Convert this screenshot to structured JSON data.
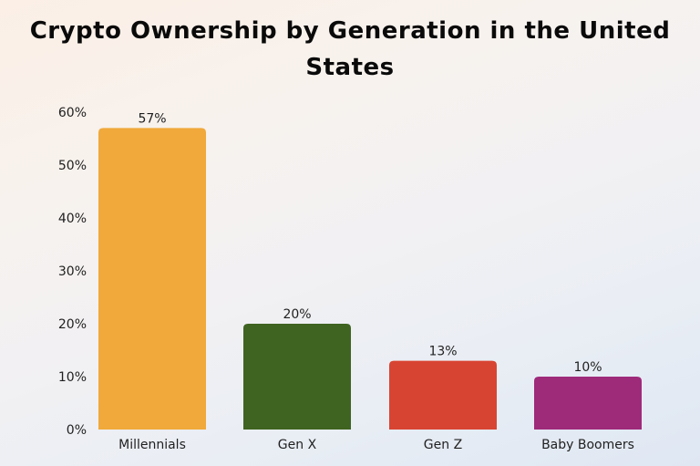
{
  "chart_data": {
    "type": "bar",
    "title": "Crypto Ownership by Generation in the United States",
    "title_lines": [
      "Crypto Ownership by Generation in the United",
      "States"
    ],
    "categories": [
      "Millennials",
      "Gen X",
      "Gen Z",
      "Baby Boomers"
    ],
    "values": [
      57,
      20,
      13,
      10
    ],
    "data_labels": [
      "57%",
      "20%",
      "13%",
      "10%"
    ],
    "colors": [
      "#f0a93a",
      "#3f6320",
      "#d84432",
      "#9e2a7a"
    ],
    "yticks": [
      "0%",
      "10%",
      "20%",
      "30%",
      "40%",
      "50%",
      "60%"
    ],
    "ylim": [
      0,
      60
    ],
    "xlabel": "",
    "ylabel": "",
    "grid": false,
    "legend": "none"
  }
}
